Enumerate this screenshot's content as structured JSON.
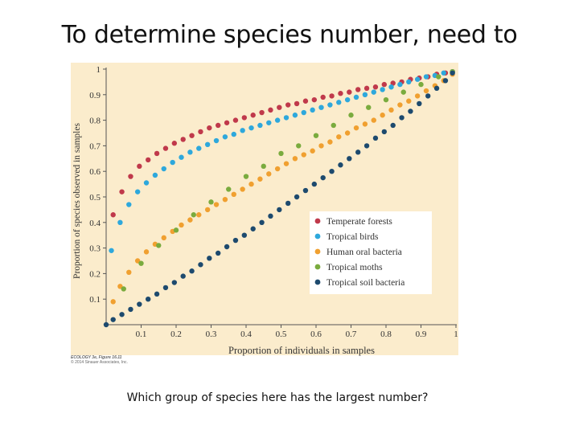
{
  "slide": {
    "title": "To determine species number, need to",
    "question": "Which group of species here has the largest number?",
    "credit": [
      "ECOLOGY 3e, Figure 16.11",
      "© 2014 Sinauer Associates, Inc."
    ]
  },
  "colors": {
    "plot_bg": "#fbeccc",
    "axis": "#555555",
    "text": "#333333"
  },
  "chart_data": {
    "type": "scatter",
    "title": "",
    "xlabel": "Proportion of individuals in samples",
    "ylabel": "Proportion of species observed in samples",
    "xlim": [
      0,
      1
    ],
    "ylim": [
      0,
      1
    ],
    "xticks": [
      "0.1",
      "0.2",
      "0.3",
      "0.4",
      "0.5",
      "0.6",
      "0.7",
      "0.8",
      "0.9",
      "1"
    ],
    "yticks": [
      "0.1",
      "0.2",
      "0.3",
      "0.4",
      "0.5",
      "0.6",
      "0.7",
      "0.8",
      "0.9",
      "1"
    ],
    "legend_position": "lower-right",
    "series": [
      {
        "name": "Temperate forests",
        "color": "#c0394b",
        "points": [
          [
            0.02,
            0.43
          ],
          [
            0.045,
            0.52
          ],
          [
            0.07,
            0.58
          ],
          [
            0.095,
            0.62
          ],
          [
            0.12,
            0.645
          ],
          [
            0.145,
            0.67
          ],
          [
            0.17,
            0.69
          ],
          [
            0.195,
            0.71
          ],
          [
            0.22,
            0.725
          ],
          [
            0.245,
            0.74
          ],
          [
            0.27,
            0.755
          ],
          [
            0.295,
            0.77
          ],
          [
            0.32,
            0.78
          ],
          [
            0.345,
            0.79
          ],
          [
            0.37,
            0.8
          ],
          [
            0.395,
            0.81
          ],
          [
            0.42,
            0.82
          ],
          [
            0.445,
            0.83
          ],
          [
            0.47,
            0.84
          ],
          [
            0.495,
            0.85
          ],
          [
            0.52,
            0.86
          ],
          [
            0.545,
            0.865
          ],
          [
            0.57,
            0.875
          ],
          [
            0.595,
            0.88
          ],
          [
            0.62,
            0.89
          ],
          [
            0.645,
            0.895
          ],
          [
            0.67,
            0.905
          ],
          [
            0.695,
            0.91
          ],
          [
            0.72,
            0.92
          ],
          [
            0.745,
            0.925
          ],
          [
            0.77,
            0.93
          ],
          [
            0.795,
            0.94
          ],
          [
            0.82,
            0.945
          ],
          [
            0.845,
            0.95
          ],
          [
            0.87,
            0.96
          ],
          [
            0.895,
            0.965
          ],
          [
            0.92,
            0.97
          ],
          [
            0.945,
            0.98
          ],
          [
            0.97,
            0.985
          ],
          [
            0.99,
            0.99
          ]
        ]
      },
      {
        "name": "Tropical birds",
        "color": "#2ea8dc",
        "points": [
          [
            0.015,
            0.29
          ],
          [
            0.04,
            0.4
          ],
          [
            0.065,
            0.47
          ],
          [
            0.09,
            0.52
          ],
          [
            0.115,
            0.555
          ],
          [
            0.14,
            0.585
          ],
          [
            0.165,
            0.61
          ],
          [
            0.19,
            0.635
          ],
          [
            0.215,
            0.655
          ],
          [
            0.24,
            0.675
          ],
          [
            0.265,
            0.69
          ],
          [
            0.29,
            0.705
          ],
          [
            0.315,
            0.72
          ],
          [
            0.34,
            0.735
          ],
          [
            0.365,
            0.745
          ],
          [
            0.39,
            0.76
          ],
          [
            0.415,
            0.77
          ],
          [
            0.44,
            0.78
          ],
          [
            0.465,
            0.79
          ],
          [
            0.49,
            0.8
          ],
          [
            0.515,
            0.81
          ],
          [
            0.54,
            0.82
          ],
          [
            0.565,
            0.83
          ],
          [
            0.59,
            0.84
          ],
          [
            0.615,
            0.85
          ],
          [
            0.64,
            0.86
          ],
          [
            0.665,
            0.87
          ],
          [
            0.69,
            0.88
          ],
          [
            0.715,
            0.89
          ],
          [
            0.74,
            0.9
          ],
          [
            0.765,
            0.91
          ],
          [
            0.79,
            0.92
          ],
          [
            0.815,
            0.93
          ],
          [
            0.84,
            0.94
          ],
          [
            0.865,
            0.95
          ],
          [
            0.89,
            0.96
          ],
          [
            0.915,
            0.97
          ],
          [
            0.94,
            0.975
          ],
          [
            0.965,
            0.985
          ],
          [
            0.99,
            0.99
          ]
        ]
      },
      {
        "name": "Human oral bacteria",
        "color": "#f0a030",
        "points": [
          [
            0.02,
            0.09
          ],
          [
            0.04,
            0.15
          ],
          [
            0.065,
            0.205
          ],
          [
            0.09,
            0.25
          ],
          [
            0.115,
            0.285
          ],
          [
            0.14,
            0.315
          ],
          [
            0.165,
            0.34
          ],
          [
            0.19,
            0.365
          ],
          [
            0.215,
            0.39
          ],
          [
            0.24,
            0.41
          ],
          [
            0.265,
            0.43
          ],
          [
            0.29,
            0.45
          ],
          [
            0.315,
            0.47
          ],
          [
            0.34,
            0.49
          ],
          [
            0.365,
            0.51
          ],
          [
            0.39,
            0.53
          ],
          [
            0.415,
            0.55
          ],
          [
            0.44,
            0.57
          ],
          [
            0.465,
            0.59
          ],
          [
            0.49,
            0.61
          ],
          [
            0.515,
            0.63
          ],
          [
            0.54,
            0.65
          ],
          [
            0.565,
            0.665
          ],
          [
            0.59,
            0.68
          ],
          [
            0.615,
            0.7
          ],
          [
            0.64,
            0.715
          ],
          [
            0.665,
            0.735
          ],
          [
            0.69,
            0.75
          ],
          [
            0.715,
            0.77
          ],
          [
            0.74,
            0.785
          ],
          [
            0.765,
            0.8
          ],
          [
            0.79,
            0.82
          ],
          [
            0.815,
            0.84
          ],
          [
            0.84,
            0.86
          ],
          [
            0.865,
            0.875
          ],
          [
            0.89,
            0.895
          ],
          [
            0.915,
            0.915
          ],
          [
            0.94,
            0.935
          ],
          [
            0.965,
            0.955
          ],
          [
            0.99,
            0.98
          ]
        ]
      },
      {
        "name": "Tropical moths",
        "color": "#7aab3e",
        "points": [
          [
            0.05,
            0.14
          ],
          [
            0.1,
            0.24
          ],
          [
            0.15,
            0.31
          ],
          [
            0.2,
            0.37
          ],
          [
            0.25,
            0.43
          ],
          [
            0.3,
            0.48
          ],
          [
            0.35,
            0.53
          ],
          [
            0.4,
            0.58
          ],
          [
            0.45,
            0.62
          ],
          [
            0.5,
            0.67
          ],
          [
            0.55,
            0.7
          ],
          [
            0.6,
            0.74
          ],
          [
            0.65,
            0.78
          ],
          [
            0.7,
            0.82
          ],
          [
            0.75,
            0.85
          ],
          [
            0.8,
            0.88
          ],
          [
            0.85,
            0.91
          ],
          [
            0.9,
            0.94
          ],
          [
            0.95,
            0.97
          ],
          [
            0.99,
            0.99
          ]
        ]
      },
      {
        "name": "Tropical soil bacteria",
        "color": "#1d4a6e",
        "points": [
          [
            0.0,
            0.0
          ],
          [
            0.02,
            0.02
          ],
          [
            0.045,
            0.04
          ],
          [
            0.07,
            0.06
          ],
          [
            0.095,
            0.08
          ],
          [
            0.12,
            0.1
          ],
          [
            0.145,
            0.12
          ],
          [
            0.17,
            0.145
          ],
          [
            0.195,
            0.165
          ],
          [
            0.22,
            0.19
          ],
          [
            0.245,
            0.21
          ],
          [
            0.27,
            0.235
          ],
          [
            0.295,
            0.26
          ],
          [
            0.32,
            0.28
          ],
          [
            0.345,
            0.305
          ],
          [
            0.37,
            0.33
          ],
          [
            0.395,
            0.35
          ],
          [
            0.42,
            0.375
          ],
          [
            0.445,
            0.4
          ],
          [
            0.47,
            0.425
          ],
          [
            0.495,
            0.45
          ],
          [
            0.52,
            0.475
          ],
          [
            0.545,
            0.5
          ],
          [
            0.57,
            0.525
          ],
          [
            0.595,
            0.55
          ],
          [
            0.62,
            0.575
          ],
          [
            0.645,
            0.6
          ],
          [
            0.67,
            0.625
          ],
          [
            0.695,
            0.65
          ],
          [
            0.72,
            0.675
          ],
          [
            0.745,
            0.7
          ],
          [
            0.77,
            0.73
          ],
          [
            0.795,
            0.755
          ],
          [
            0.82,
            0.78
          ],
          [
            0.845,
            0.81
          ],
          [
            0.87,
            0.835
          ],
          [
            0.895,
            0.865
          ],
          [
            0.92,
            0.895
          ],
          [
            0.945,
            0.925
          ],
          [
            0.97,
            0.955
          ],
          [
            0.99,
            0.985
          ]
        ]
      }
    ]
  }
}
